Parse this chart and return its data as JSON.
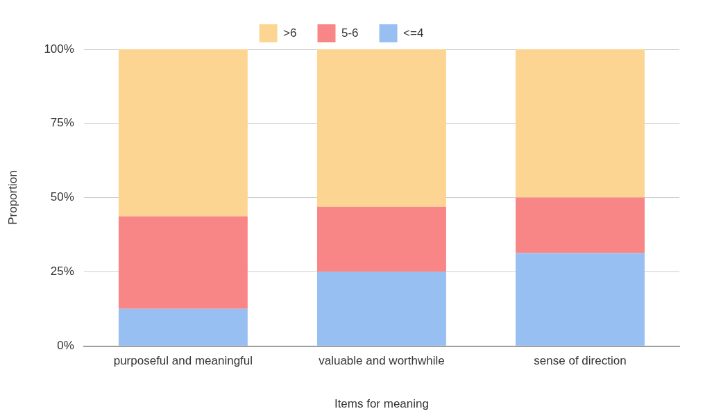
{
  "chart_data": {
    "type": "bar",
    "stacked": true,
    "xlabel": "Items for meaning",
    "ylabel": "Proportion",
    "categories": [
      "purposeful and meaningful",
      "valuable and worthwhile",
      "sense of direction"
    ],
    "series": [
      {
        "name": "<=4",
        "color": "#98bff2",
        "values": [
          12.5,
          25,
          31.3
        ]
      },
      {
        "name": "5-6",
        "color": "#f98686",
        "values": [
          31.2,
          21.9,
          18.7
        ]
      },
      {
        "name": ">6",
        "color": "#fdd592",
        "values": [
          56.3,
          53.1,
          50
        ]
      }
    ],
    "ylim": [
      0,
      100
    ],
    "yticks": [
      {
        "value": 0,
        "label": "0%"
      },
      {
        "value": 25,
        "label": "25%"
      },
      {
        "value": 50,
        "label": "50%"
      },
      {
        "value": 75,
        "label": "75%"
      },
      {
        "value": 100,
        "label": "100%"
      }
    ],
    "grid": "y",
    "legend": "top"
  }
}
